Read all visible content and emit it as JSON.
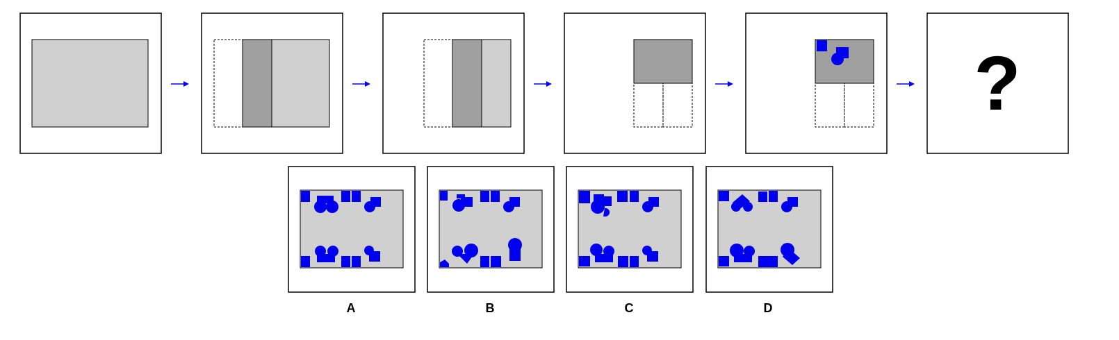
{
  "question_mark": "?",
  "options": [
    {
      "label": "A"
    },
    {
      "label": "B"
    },
    {
      "label": "C"
    },
    {
      "label": "D"
    }
  ],
  "colors": {
    "paper_light": "#d0d0d0",
    "paper_dark": "#a0a0a0",
    "punch_hole": "#0000ee",
    "arrow": "#0000ff",
    "frame": "#000000"
  }
}
